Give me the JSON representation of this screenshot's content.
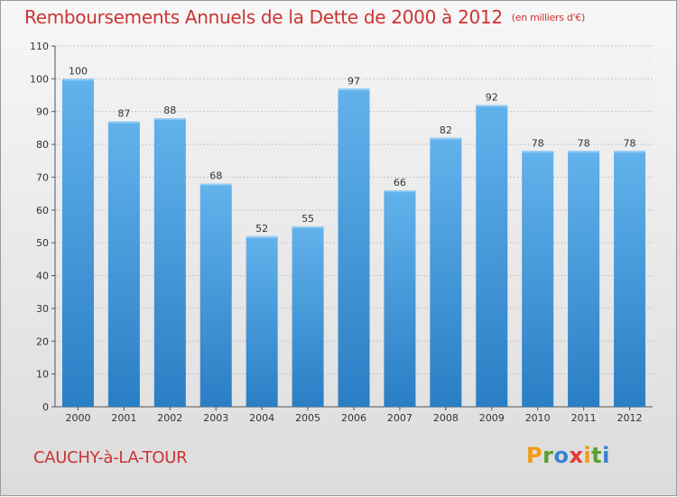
{
  "title": "Remboursements Annuels de la Dette de 2000 à 2012",
  "subtitle": "(en milliers d'€)",
  "commune": "CAUCHY-à-LA-TOUR",
  "logo": {
    "letters": [
      "P",
      "r",
      "o",
      "x",
      "i",
      "t",
      "i"
    ],
    "colors": [
      "#f39c12",
      "#5aa02c",
      "#3b7fd4",
      "#e53935",
      "#f39c12",
      "#5aa02c",
      "#3b7fd4"
    ]
  },
  "colors": {
    "bar_top": "#62b2ec",
    "bar_bottom": "#2a7ec4",
    "title": "#cc3333"
  },
  "chart_data": {
    "type": "bar",
    "categories": [
      "2000",
      "2001",
      "2002",
      "2003",
      "2004",
      "2005",
      "2006",
      "2007",
      "2008",
      "2009",
      "2010",
      "2011",
      "2012"
    ],
    "values": [
      100,
      87,
      88,
      68,
      52,
      55,
      97,
      66,
      82,
      92,
      78,
      78,
      78
    ],
    "ylim": [
      0,
      110
    ],
    "yticks": [
      0,
      10,
      20,
      30,
      40,
      50,
      60,
      70,
      80,
      90,
      100,
      110
    ],
    "grid": true,
    "data_labels": true
  }
}
